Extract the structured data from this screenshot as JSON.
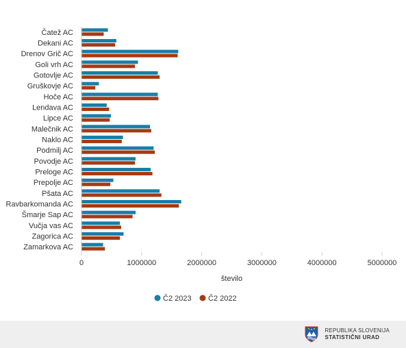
{
  "chart_data": {
    "type": "bar",
    "orientation": "horizontal",
    "categories": [
      "Čatež AC",
      "Dekani AC",
      "Drenov Grič AC",
      "Goli vrh AC",
      "Gotovlje AC",
      "Gruškovje AC",
      "Hoče AC",
      "Lendava AC",
      "Lipce AC",
      "Malečnik AC",
      "Naklo AC",
      "Podmilj AC",
      "Povodje AC",
      "Preloge AC",
      "Prepolje AC",
      "Pšata AC",
      "Ravbarkomanda AC",
      "Šmarje Sap AC",
      "Vučja vas AC",
      "Zagorica AC",
      "Zamarkova AC"
    ],
    "series": [
      {
        "name": "Č2 2023",
        "color": "#1a7ea6",
        "values": [
          440000,
          580000,
          1610000,
          940000,
          1270000,
          290000,
          1270000,
          420000,
          490000,
          1140000,
          690000,
          1200000,
          900000,
          1150000,
          530000,
          1300000,
          1660000,
          900000,
          640000,
          700000,
          360000
        ]
      },
      {
        "name": "Č2 2022",
        "color": "#a63a12",
        "values": [
          370000,
          560000,
          1600000,
          890000,
          1300000,
          230000,
          1280000,
          460000,
          470000,
          1160000,
          670000,
          1220000,
          890000,
          1180000,
          480000,
          1330000,
          1620000,
          850000,
          660000,
          640000,
          390000
        ]
      }
    ],
    "xlabel": "število",
    "ylabel": "",
    "xlim": [
      0,
      5000000
    ],
    "xticks": [
      0,
      1000000,
      2000000,
      3000000,
      4000000,
      5000000
    ],
    "xtick_labels": [
      "0",
      "1000000",
      "2000000",
      "3000000",
      "4000000",
      "5000000"
    ],
    "grid": false,
    "legend_position": "bottom-center"
  },
  "footer": {
    "org_line1": "REPUBLIKA SLOVENIJA",
    "org_line2": "STATISTIČNI URAD",
    "logo_icon": "slovenia-crest-icon"
  }
}
